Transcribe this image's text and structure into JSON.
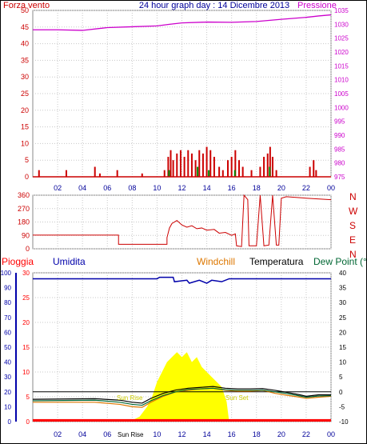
{
  "top": {
    "wind_label": "Forza vento",
    "title": "24 hour graph day : 14 Dicembre 2013",
    "pressure_label": "Pressione"
  },
  "mid": {
    "compass": [
      "N",
      "W",
      "S",
      "E",
      "N"
    ]
  },
  "bottom": {
    "rain_label": "Pioggia",
    "humidity_label": "Umidita",
    "windchill_label": "Windchill",
    "temperature_label": "Temperatura",
    "dewpoint_label": "Dew Point (°C",
    "sunrise_label": "Sun Rise",
    "sunset_label": "Sun Set",
    "sunrise_axis_label": "Sun Rise"
  },
  "colors": {
    "wind": "#cc0000",
    "pressure": "#cc00cc",
    "title": "#000099",
    "humidity": "#0000aa",
    "windchill": "#dd7700",
    "temperature": "#000000",
    "dewpoint": "#006633",
    "solar": "#ffff00",
    "rain": "#ff0000",
    "grid": "#c8c8c8"
  },
  "chart_data": [
    {
      "type": "bar",
      "name": "wind",
      "ylim": [
        0,
        50
      ],
      "yticks": [
        0,
        5,
        10,
        15,
        20,
        25,
        30,
        35,
        40,
        45,
        50
      ],
      "y2lim": [
        975,
        1035
      ],
      "y2ticks": [
        975,
        980,
        985,
        990,
        995,
        1000,
        1005,
        1010,
        1015,
        1020,
        1025,
        1030,
        1035
      ],
      "xlim": [
        0,
        24
      ],
      "xticks": [
        "02",
        "04",
        "06",
        "08",
        "10",
        "12",
        "14",
        "16",
        "18",
        "20",
        "22",
        "00"
      ],
      "wind_bars": [
        [
          0.5,
          2
        ],
        [
          2.7,
          2
        ],
        [
          5.0,
          3
        ],
        [
          5.4,
          1
        ],
        [
          6.8,
          2
        ],
        [
          8.8,
          1
        ],
        [
          10.6,
          2
        ],
        [
          10.9,
          6
        ],
        [
          11.1,
          8
        ],
        [
          11.3,
          5
        ],
        [
          11.6,
          7
        ],
        [
          11.9,
          8
        ],
        [
          12.2,
          6
        ],
        [
          12.5,
          8
        ],
        [
          12.8,
          7
        ],
        [
          13.1,
          5
        ],
        [
          13.4,
          8
        ],
        [
          13.7,
          7
        ],
        [
          14.0,
          9
        ],
        [
          14.3,
          8
        ],
        [
          14.6,
          6
        ],
        [
          15.0,
          3
        ],
        [
          15.3,
          2
        ],
        [
          15.7,
          5
        ],
        [
          16.0,
          6
        ],
        [
          16.3,
          8
        ],
        [
          16.6,
          5
        ],
        [
          16.9,
          3
        ],
        [
          17.6,
          2
        ],
        [
          18.3,
          3
        ],
        [
          18.6,
          6
        ],
        [
          18.9,
          7
        ],
        [
          19.1,
          9
        ],
        [
          19.3,
          6
        ],
        [
          19.6,
          2
        ],
        [
          22.3,
          3
        ],
        [
          22.6,
          5
        ],
        [
          22.8,
          2
        ]
      ],
      "gust_marks": [
        [
          10.9,
          2
        ],
        [
          13.2,
          3
        ],
        [
          14.1,
          2
        ],
        [
          16.2,
          2
        ],
        [
          19.0,
          3
        ]
      ],
      "pressure": [
        [
          0,
          1028.0
        ],
        [
          2,
          1028.0
        ],
        [
          4,
          1027.8
        ],
        [
          6,
          1028.8
        ],
        [
          8,
          1029.1
        ],
        [
          10,
          1029.4
        ],
        [
          11,
          1030.0
        ],
        [
          12,
          1030.5
        ],
        [
          14,
          1030.8
        ],
        [
          16,
          1030.7
        ],
        [
          18,
          1031.0
        ],
        [
          20,
          1031.8
        ],
        [
          22,
          1032.5
        ],
        [
          23,
          1033.0
        ],
        [
          24,
          1033.4
        ]
      ]
    },
    {
      "type": "line",
      "name": "wind_direction",
      "ylim": [
        0,
        360
      ],
      "yticks": [
        0,
        90,
        180,
        270,
        360
      ],
      "xlim": [
        0,
        24
      ],
      "xticks": [
        "02",
        "04",
        "06",
        "08",
        "10",
        "12",
        "14",
        "16",
        "18",
        "20",
        "22",
        "00"
      ],
      "points": [
        [
          0,
          92
        ],
        [
          6.9,
          92
        ],
        [
          6.9,
          30
        ],
        [
          10.8,
          30
        ],
        [
          10.8,
          75
        ],
        [
          11.0,
          140
        ],
        [
          11.2,
          170
        ],
        [
          11.6,
          190
        ],
        [
          12.0,
          160
        ],
        [
          12.4,
          145
        ],
        [
          12.8,
          155
        ],
        [
          13.2,
          135
        ],
        [
          13.6,
          140
        ],
        [
          14.0,
          125
        ],
        [
          14.6,
          130
        ],
        [
          15.0,
          105
        ],
        [
          15.5,
          110
        ],
        [
          16.0,
          90
        ],
        [
          16.3,
          100
        ],
        [
          16.4,
          20
        ],
        [
          16.8,
          15
        ],
        [
          17.0,
          360
        ],
        [
          17.3,
          330
        ],
        [
          17.4,
          20
        ],
        [
          18.0,
          20
        ],
        [
          18.3,
          360
        ],
        [
          18.6,
          20
        ],
        [
          19.0,
          25
        ],
        [
          19.3,
          360
        ],
        [
          19.6,
          25
        ],
        [
          19.8,
          25
        ],
        [
          20.0,
          340
        ],
        [
          20.4,
          350
        ],
        [
          22.0,
          340
        ],
        [
          24,
          330
        ]
      ]
    },
    {
      "type": "line",
      "name": "temperature_humidity_rain",
      "ylim": [
        0,
        30
      ],
      "yticks": [
        0,
        5,
        10,
        15,
        20,
        25,
        30
      ],
      "y_hum": [
        0,
        100
      ],
      "y_hum_ticks": [
        0,
        10,
        20,
        30,
        40,
        50,
        60,
        70,
        80,
        90,
        100
      ],
      "y2lim": [
        -10,
        40
      ],
      "y2ticks": [
        -10,
        -5,
        0,
        5,
        10,
        15,
        20,
        25,
        30,
        35,
        40
      ],
      "xlim": [
        0,
        24
      ],
      "xticks": [
        "02",
        "04",
        "06",
        "08",
        "10",
        "12",
        "14",
        "16",
        "18",
        "20",
        "22",
        "00"
      ],
      "humidity": [
        [
          0,
          96
        ],
        [
          10,
          96
        ],
        [
          10.2,
          97
        ],
        [
          11.3,
          97
        ],
        [
          11.4,
          94
        ],
        [
          12.4,
          95
        ],
        [
          12.6,
          93
        ],
        [
          13.4,
          95
        ],
        [
          14.0,
          93
        ],
        [
          14.4,
          95
        ],
        [
          15.2,
          94
        ],
        [
          15.8,
          96
        ],
        [
          24,
          96
        ]
      ],
      "temperature": [
        [
          0,
          -2.5
        ],
        [
          5,
          -2.3
        ],
        [
          7,
          -2.8
        ],
        [
          8,
          -3.5
        ],
        [
          8.8,
          -3.8
        ],
        [
          9.5,
          -2.2
        ],
        [
          10.5,
          -0.5
        ],
        [
          11.5,
          0.6
        ],
        [
          12.5,
          1.2
        ],
        [
          13.5,
          1.5
        ],
        [
          14.5,
          1.8
        ],
        [
          15.5,
          1.2
        ],
        [
          16.5,
          1.0
        ],
        [
          17.5,
          1.0
        ],
        [
          18.5,
          1.1
        ],
        [
          19.5,
          0.5
        ],
        [
          20.5,
          -0.2
        ],
        [
          21.5,
          -1.0
        ],
        [
          22.0,
          -1.5
        ],
        [
          23.0,
          -1.0
        ],
        [
          24,
          -1.0
        ]
      ],
      "windchill": [
        [
          0,
          -3.5
        ],
        [
          5,
          -3.5
        ],
        [
          7,
          -4.2
        ],
        [
          8,
          -5.0
        ],
        [
          8.8,
          -5.2
        ],
        [
          9.5,
          -3.5
        ],
        [
          10.5,
          -1.5
        ],
        [
          11.5,
          0.0
        ],
        [
          12.5,
          0.5
        ],
        [
          13.5,
          1.0
        ],
        [
          14.5,
          1.2
        ],
        [
          15.5,
          0.5
        ],
        [
          16.5,
          0.2
        ],
        [
          17.5,
          0.2
        ],
        [
          18.5,
          0.5
        ],
        [
          19.5,
          -0.5
        ],
        [
          20.5,
          -1.2
        ],
        [
          21.5,
          -1.8
        ],
        [
          22.0,
          -2.2
        ],
        [
          23.0,
          -1.8
        ],
        [
          24,
          -1.5
        ]
      ],
      "dewpoint": [
        [
          0,
          -3.0
        ],
        [
          5,
          -2.8
        ],
        [
          7,
          -3.5
        ],
        [
          8,
          -4.2
        ],
        [
          8.8,
          -4.5
        ],
        [
          9.5,
          -3.0
        ],
        [
          10.5,
          -1.2
        ],
        [
          11.5,
          0.0
        ],
        [
          12.5,
          0.8
        ],
        [
          13.5,
          1.0
        ],
        [
          14.5,
          1.2
        ],
        [
          15.5,
          0.7
        ],
        [
          16.5,
          0.5
        ],
        [
          17.5,
          0.5
        ],
        [
          18.5,
          0.6
        ],
        [
          19.5,
          0.0
        ],
        [
          20.5,
          -0.6
        ],
        [
          21.5,
          -1.4
        ],
        [
          22.0,
          -1.8
        ],
        [
          23.0,
          -1.4
        ],
        [
          24,
          -1.3
        ]
      ],
      "flat_line": [
        [
          0,
          0
        ],
        [
          24,
          0
        ]
      ],
      "solar": [
        [
          7.8,
          0
        ],
        [
          8.6,
          1
        ],
        [
          9.2,
          3
        ],
        [
          9.6,
          5
        ],
        [
          10.0,
          8
        ],
        [
          10.4,
          10
        ],
        [
          10.8,
          12
        ],
        [
          11.2,
          13
        ],
        [
          11.6,
          14
        ],
        [
          12.0,
          13
        ],
        [
          12.4,
          14
        ],
        [
          12.8,
          12
        ],
        [
          13.2,
          13
        ],
        [
          13.6,
          11
        ],
        [
          14.0,
          10
        ],
        [
          14.4,
          9
        ],
        [
          14.8,
          8
        ],
        [
          15.2,
          7
        ],
        [
          15.6,
          4
        ],
        [
          15.8,
          0
        ]
      ],
      "rain_level": 0.5
    }
  ]
}
